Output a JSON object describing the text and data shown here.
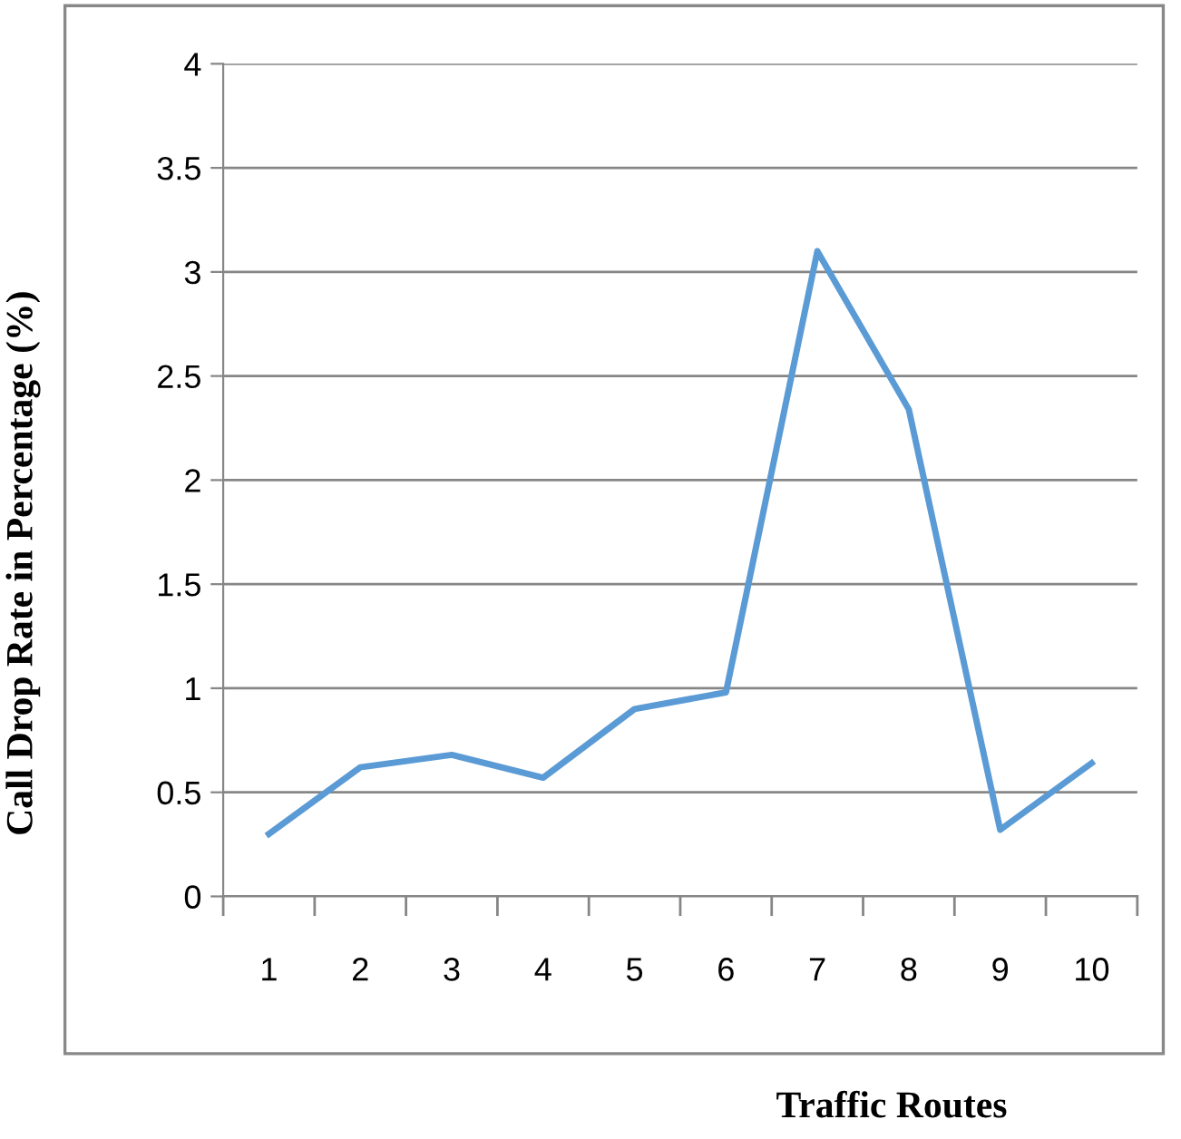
{
  "chart_data": {
    "type": "line",
    "xlabel": "Traffic Routes",
    "ylabel": "Call Drop Rate in Percentage (%)",
    "categories": [
      "1",
      "2",
      "3",
      "4",
      "5",
      "6",
      "7",
      "8",
      "9",
      "10"
    ],
    "series": [
      {
        "color": "#5b9bd5",
        "values": [
          0.3,
          0.62,
          0.68,
          0.57,
          0.9,
          0.98,
          3.1,
          2.34,
          0.32,
          0.64
        ]
      }
    ],
    "ylim": [
      0,
      4
    ],
    "yticks": [
      0,
      0.5,
      1,
      1.5,
      2,
      2.5,
      3,
      3.5,
      4
    ],
    "grid": "y",
    "legend": false,
    "marker": "none",
    "line_style": "solid"
  }
}
